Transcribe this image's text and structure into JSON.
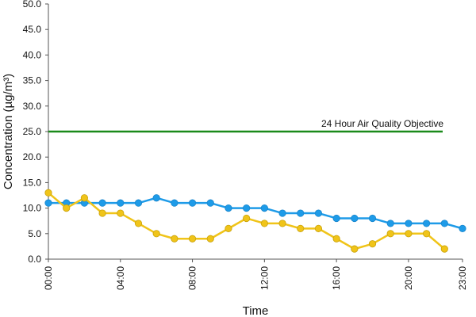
{
  "chart_data": {
    "type": "line",
    "title": "",
    "xlabel": "Time",
    "ylabel": "Concentration (µg/m³)",
    "ylim": [
      0,
      50
    ],
    "yticks": [
      "0.0",
      "5.0",
      "10.0",
      "15.0",
      "20.0",
      "25.0",
      "30.0",
      "35.0",
      "40.0",
      "45.0",
      "50.0"
    ],
    "xlim": [
      0,
      23
    ],
    "xticks": [
      {
        "hour": 0,
        "label": "00:00"
      },
      {
        "hour": 4,
        "label": "04:00"
      },
      {
        "hour": 8,
        "label": "08:00"
      },
      {
        "hour": 12,
        "label": "12:00"
      },
      {
        "hour": 16,
        "label": "16:00"
      },
      {
        "hour": 20,
        "label": "20:00"
      },
      {
        "hour": 23,
        "label": "23:00"
      }
    ],
    "grid": false,
    "legend": "none",
    "series": [
      {
        "color": "#1e9be8",
        "x": [
          0,
          1,
          2,
          3,
          4,
          5,
          6,
          7,
          8,
          9,
          10,
          11,
          12,
          13,
          14,
          15,
          16,
          17,
          18,
          19,
          20,
          21,
          22,
          23
        ],
        "values": [
          11,
          11,
          11,
          11,
          11,
          11,
          12,
          11,
          11,
          11,
          10,
          10,
          10,
          9,
          9,
          9,
          8,
          8,
          8,
          7,
          7,
          7,
          7,
          6
        ]
      },
      {
        "color": "#f0c419",
        "x": [
          0,
          1,
          2,
          3,
          4,
          5,
          6,
          7,
          8,
          9,
          10,
          11,
          12,
          13,
          14,
          15,
          16,
          17,
          18,
          19,
          20,
          21,
          22
        ],
        "values": [
          13,
          10,
          12,
          9,
          9,
          7,
          5,
          4,
          4,
          4,
          6,
          8,
          7,
          7,
          6,
          6,
          4,
          2,
          3,
          5,
          5,
          5,
          2
        ]
      }
    ],
    "reference_line": {
      "label": "24 Hour Air Quality Objective",
      "value": 25,
      "x_start": 0,
      "x_end": 23,
      "color": "#1a8a1a"
    }
  }
}
